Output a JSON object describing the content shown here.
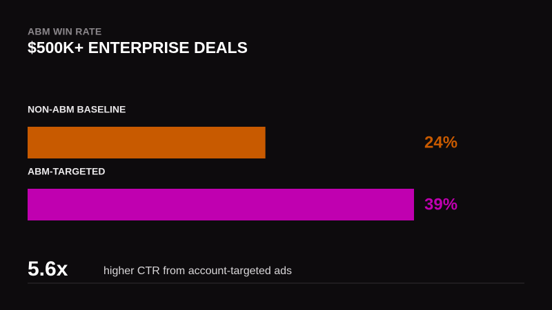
{
  "chart_data": {
    "type": "bar",
    "orientation": "horizontal",
    "subtitle": "ABM WIN RATE",
    "title": "$500K+ ENTERPRISE DEALS",
    "categories": [
      "NON-ABM BASELINE",
      "ABM-TARGETED"
    ],
    "values": [
      24,
      39
    ],
    "value_labels": [
      "24%",
      "39%"
    ],
    "colors": [
      "#c85a00",
      "#c000b0"
    ],
    "annotation": {
      "figure": "5.6x",
      "text": "higher CTR from account-targeted ads"
    }
  }
}
